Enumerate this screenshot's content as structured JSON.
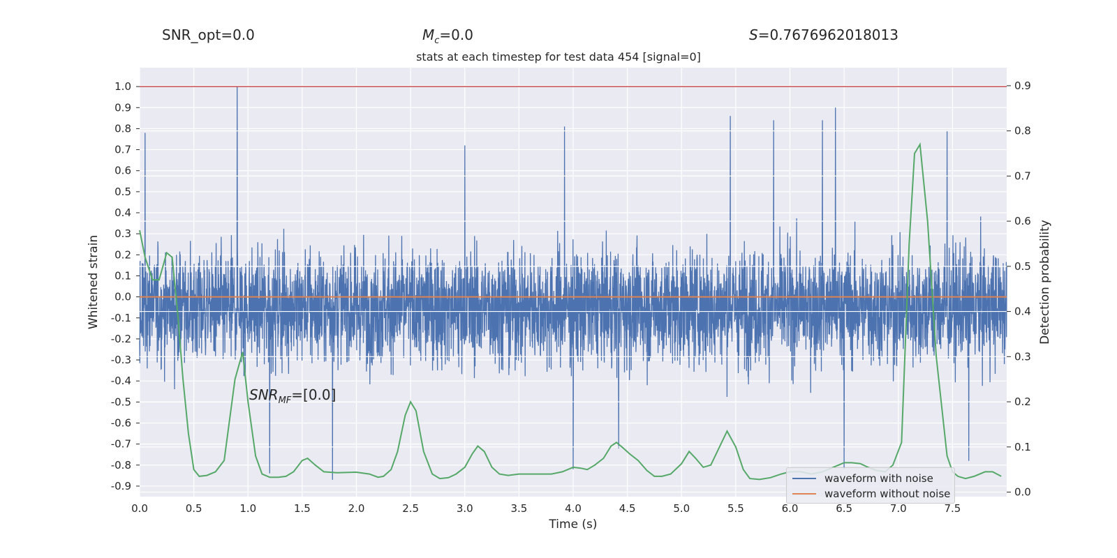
{
  "header": {
    "snr_opt": "SNR_opt=0.0",
    "mc_symbol": "M",
    "mc_sub": "c",
    "mc_value": "=0.0",
    "s_symbol": "S",
    "s_value": "=0.7676962018013",
    "subtitle": "stats at each timestep for test data 454 [signal=0]"
  },
  "annotation": {
    "snr_symbol": "SNR",
    "snr_sub": "MF",
    "snr_value": "=[0.0]"
  },
  "legend": {
    "items": [
      {
        "label": "waveform with noise",
        "color": "#4c72b0"
      },
      {
        "label": "waveform without noise",
        "color": "#dd8452"
      }
    ]
  },
  "colors": {
    "noise": "#4c72b0",
    "clean": "#dd8452",
    "prob": "#55a868",
    "threshold": "#c44e52",
    "axes_bg": "#eaeaf2",
    "grid": "#ffffff"
  },
  "chart_data": {
    "type": "line",
    "xlabel": "Time (s)",
    "ylabel_left": "Whitened strain",
    "ylabel_right": "Detection probability",
    "xlim": [
      0.0,
      8.0
    ],
    "ylim_left": [
      -0.95,
      1.09
    ],
    "ylim_right": [
      -0.01,
      0.94
    ],
    "x_ticks": [
      "0.0",
      "0.5",
      "1.0",
      "1.5",
      "2.0",
      "2.5",
      "3.0",
      "3.5",
      "4.0",
      "4.5",
      "5.0",
      "5.5",
      "6.0",
      "6.5",
      "7.0",
      "7.5"
    ],
    "y_ticks_left": [
      "-0.9",
      "-0.8",
      "-0.7",
      "-0.6",
      "-0.5",
      "-0.4",
      "-0.3",
      "-0.2",
      "-0.1",
      "0.0",
      "0.1",
      "0.2",
      "0.3",
      "0.4",
      "0.5",
      "0.6",
      "0.7",
      "0.8",
      "0.9",
      "1.0"
    ],
    "y_ticks_right": [
      "0.0",
      "0.1",
      "0.2",
      "0.3",
      "0.4",
      "0.5",
      "0.6",
      "0.7",
      "0.8",
      "0.9"
    ],
    "threshold_line": 1.0,
    "clean_waveform_value": 0.0,
    "noise_envelope": {
      "sample_rate_note": "dense noise trace",
      "typical_upper": 0.35,
      "typical_lower": -0.45,
      "peaks": [
        {
          "x": 0.05,
          "y": 0.78
        },
        {
          "x": 0.9,
          "y": 1.0
        },
        {
          "x": 1.2,
          "y": -0.84
        },
        {
          "x": 1.78,
          "y": -0.87
        },
        {
          "x": 3.0,
          "y": 0.72
        },
        {
          "x": 3.92,
          "y": 0.81
        },
        {
          "x": 4.0,
          "y": -0.82
        },
        {
          "x": 4.42,
          "y": -0.72
        },
        {
          "x": 5.45,
          "y": 0.86
        },
        {
          "x": 5.85,
          "y": 0.84
        },
        {
          "x": 6.3,
          "y": 0.84
        },
        {
          "x": 6.42,
          "y": 0.9
        },
        {
          "x": 6.5,
          "y": -0.82
        },
        {
          "x": 7.45,
          "y": 0.79
        },
        {
          "x": 7.65,
          "y": -0.78
        }
      ]
    },
    "series": [
      {
        "name": "waveform with noise",
        "axis": "left"
      },
      {
        "name": "waveform without noise",
        "axis": "left",
        "x": [
          0.0,
          8.0
        ],
        "y": [
          0.0,
          0.0
        ]
      },
      {
        "axis": "right",
        "x": [
          0.0,
          0.05,
          0.12,
          0.18,
          0.25,
          0.3,
          0.35,
          0.4,
          0.45,
          0.5,
          0.55,
          0.62,
          0.7,
          0.78,
          0.88,
          0.95,
          1.0,
          1.07,
          1.13,
          1.2,
          1.28,
          1.35,
          1.42,
          1.5,
          1.55,
          1.62,
          1.7,
          1.82,
          2.0,
          2.12,
          2.2,
          2.25,
          2.32,
          2.38,
          2.45,
          2.5,
          2.55,
          2.62,
          2.7,
          2.77,
          2.85,
          2.92,
          3.0,
          3.07,
          3.12,
          3.18,
          3.25,
          3.32,
          3.4,
          3.5,
          3.65,
          3.8,
          3.9,
          4.0,
          4.07,
          4.13,
          4.2,
          4.28,
          4.35,
          4.4,
          4.45,
          4.52,
          4.6,
          4.68,
          4.75,
          4.82,
          4.9,
          5.0,
          5.07,
          5.13,
          5.2,
          5.27,
          5.35,
          5.42,
          5.5,
          5.57,
          5.63,
          5.72,
          5.82,
          5.92,
          6.0,
          6.1,
          6.2,
          6.3,
          6.4,
          6.5,
          6.57,
          6.65,
          6.72,
          6.8,
          6.88,
          6.95,
          7.03,
          7.1,
          7.15,
          7.2,
          7.27,
          7.35,
          7.45,
          7.5,
          7.55,
          7.62,
          7.7,
          7.8,
          7.87,
          7.95
        ],
        "y": [
          0.58,
          0.52,
          0.47,
          0.47,
          0.53,
          0.52,
          0.4,
          0.25,
          0.13,
          0.05,
          0.035,
          0.037,
          0.045,
          0.07,
          0.25,
          0.31,
          0.2,
          0.08,
          0.04,
          0.033,
          0.033,
          0.035,
          0.045,
          0.07,
          0.075,
          0.06,
          0.045,
          0.043,
          0.044,
          0.04,
          0.033,
          0.035,
          0.05,
          0.09,
          0.17,
          0.2,
          0.18,
          0.09,
          0.04,
          0.03,
          0.032,
          0.04,
          0.055,
          0.085,
          0.102,
          0.09,
          0.055,
          0.04,
          0.037,
          0.04,
          0.04,
          0.04,
          0.045,
          0.055,
          0.053,
          0.05,
          0.06,
          0.075,
          0.102,
          0.11,
          0.1,
          0.085,
          0.07,
          0.048,
          0.035,
          0.035,
          0.04,
          0.063,
          0.09,
          0.075,
          0.055,
          0.06,
          0.1,
          0.135,
          0.1,
          0.05,
          0.03,
          0.028,
          0.032,
          0.04,
          0.045,
          0.045,
          0.04,
          0.045,
          0.055,
          0.065,
          0.065,
          0.063,
          0.055,
          0.048,
          0.045,
          0.06,
          0.11,
          0.55,
          0.75,
          0.77,
          0.6,
          0.3,
          0.08,
          0.045,
          0.035,
          0.03,
          0.035,
          0.045,
          0.045,
          0.035
        ]
      }
    ]
  }
}
